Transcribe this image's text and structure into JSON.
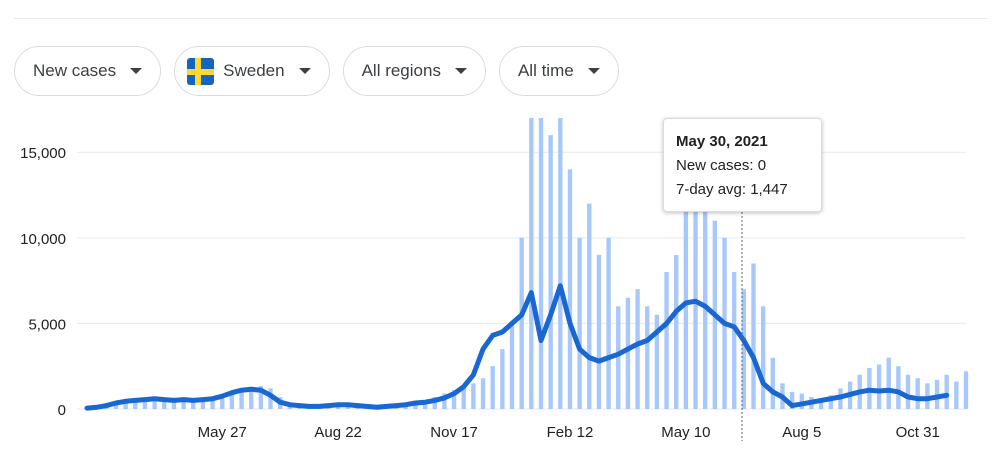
{
  "filters": {
    "metric": "New cases",
    "country": "Sweden",
    "region": "All regions",
    "range": "All time"
  },
  "icons": {
    "dropdown": "caret-down-icon",
    "country_flag": "sweden-flag-icon"
  },
  "colors": {
    "bars": "#a8c7fa",
    "line": "#1967d2",
    "grid": "#e8eaed",
    "text": "#202124"
  },
  "tooltip": {
    "date": "May 30, 2021",
    "new_cases": "New cases: 0",
    "avg": "7-day avg: 1,447"
  },
  "chart_data": {
    "type": "bar",
    "title": "",
    "xlabel": "",
    "ylabel": "",
    "ylim": [
      0,
      17000
    ],
    "y_ticks": [
      0,
      5000,
      10000,
      15000
    ],
    "y_tick_labels": [
      "0",
      "5,000",
      "10,000",
      "15,000"
    ],
    "x_tick_labels": [
      "May 27",
      "Aug 22",
      "Nov 17",
      "Feb 12",
      "May 10",
      "Aug 5",
      "Oct 31"
    ],
    "x_tick_index": [
      14,
      26,
      38,
      50,
      62,
      74,
      86
    ],
    "grid": true,
    "series": [
      {
        "chart_role": "daily_bars",
        "values": [
          100,
          150,
          250,
          350,
          450,
          550,
          650,
          600,
          550,
          650,
          600,
          500,
          600,
          700,
          800,
          1000,
          1100,
          1300,
          1350,
          1200,
          700,
          350,
          250,
          200,
          200,
          150,
          200,
          250,
          300,
          250,
          200,
          150,
          200,
          250,
          350,
          500,
          700,
          900,
          1100,
          1300,
          1500,
          1800,
          2500,
          3500,
          5000,
          10000,
          17000,
          17000,
          16000,
          17000,
          14000,
          10000,
          12000,
          9000,
          10000,
          6000,
          6500,
          7000,
          6000,
          5500,
          8000,
          9000,
          12000,
          13000,
          12000,
          11000,
          10000,
          8000,
          7000,
          8500,
          6000,
          3000,
          1500,
          1000,
          900,
          700,
          600,
          800,
          1200,
          1600,
          2000,
          2400,
          2600,
          3000,
          2500,
          2000,
          1800,
          1500,
          1700,
          2000,
          1600,
          2200
        ]
      },
      {
        "chart_role": "seven_day_average",
        "values": [
          50,
          100,
          200,
          350,
          450,
          500,
          550,
          600,
          550,
          500,
          550,
          500,
          550,
          600,
          750,
          950,
          1100,
          1150,
          1100,
          800,
          400,
          250,
          200,
          150,
          150,
          200,
          250,
          250,
          200,
          150,
          100,
          150,
          200,
          250,
          350,
          400,
          500,
          650,
          900,
          1300,
          2000,
          3500,
          4300,
          4500,
          5000,
          5500,
          6800,
          4000,
          5500,
          7200,
          5000,
          3500,
          3000,
          2800,
          3000,
          3200,
          3500,
          3800,
          4000,
          4500,
          5000,
          5700,
          6200,
          6300,
          6000,
          5500,
          5000,
          4800,
          4000,
          3000,
          1500,
          1000,
          700,
          200,
          300,
          400,
          500,
          600,
          700,
          850,
          1000,
          1100,
          1050,
          1100,
          1000,
          700,
          600,
          600,
          700,
          800
        ]
      }
    ]
  }
}
